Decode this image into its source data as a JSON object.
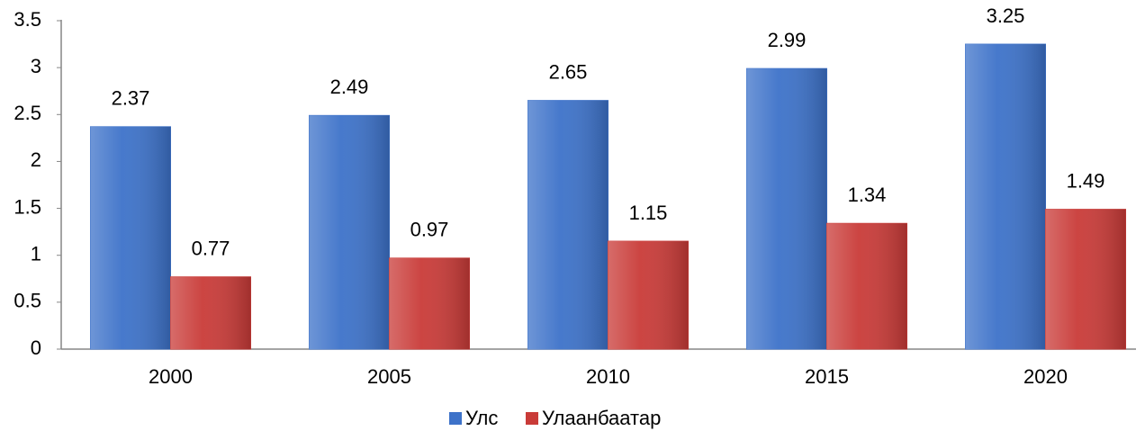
{
  "chart_data": {
    "type": "bar",
    "categories": [
      "2000",
      "2005",
      "2010",
      "2015",
      "2020"
    ],
    "series": [
      {
        "name": "Улс",
        "color": "#3d72c9",
        "values": [
          2.37,
          2.49,
          2.65,
          2.99,
          3.25
        ]
      },
      {
        "name": "Улаанбаатар",
        "color": "#c93b38",
        "values": [
          0.77,
          0.97,
          1.15,
          1.34,
          1.49
        ]
      }
    ],
    "ylim": [
      0,
      3.5
    ],
    "yticks": [
      0,
      0.5,
      1,
      1.5,
      2,
      2.5,
      3,
      3.5
    ],
    "grid": false,
    "legend": "bottom"
  }
}
